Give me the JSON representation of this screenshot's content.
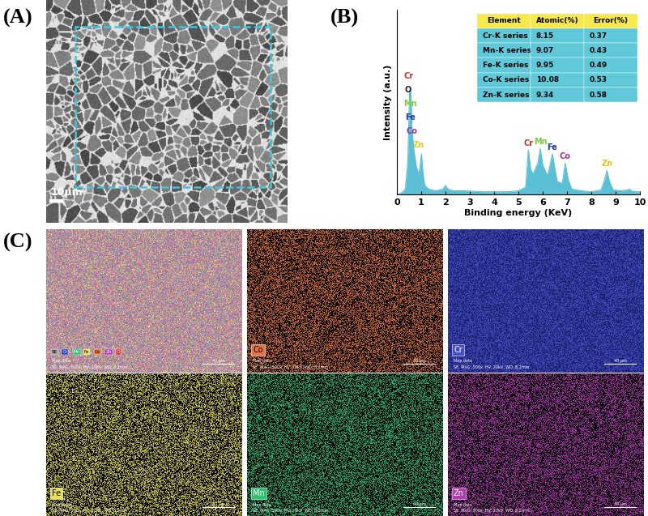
{
  "panels": {
    "A": {
      "label": "(A)",
      "scale_bar": "10μm"
    },
    "B": {
      "label": "(B)"
    },
    "C": {
      "label": "(C)"
    }
  },
  "chart_data": {
    "type": "area",
    "xlabel": "Binding energy (KeV)",
    "ylabel": "Intensity (a.u.)",
    "x": [
      0.0,
      0.2,
      0.35,
      0.45,
      0.52,
      0.57,
      0.62,
      0.7,
      0.8,
      0.9,
      0.95,
      1.01,
      1.07,
      1.15,
      1.3,
      1.6,
      1.9,
      2.0,
      2.1,
      2.3,
      2.8,
      3.5,
      4.0,
      4.5,
      5.0,
      5.3,
      5.41,
      5.5,
      5.6,
      5.8,
      5.9,
      6.0,
      6.2,
      6.4,
      6.5,
      6.6,
      6.8,
      6.93,
      7.05,
      7.2,
      7.6,
      8.0,
      8.4,
      8.55,
      8.64,
      8.75,
      8.9,
      9.2,
      9.5,
      9.57,
      9.65,
      9.8,
      10.0
    ],
    "values": [
      0,
      1,
      3,
      18,
      55,
      58,
      35,
      24,
      15,
      11,
      15,
      22,
      12,
      5,
      3,
      2,
      3,
      5,
      3,
      2,
      2,
      1.5,
      1.5,
      1.5,
      2,
      4,
      24,
      14,
      11,
      17,
      25,
      16,
      10,
      22,
      14,
      7,
      6,
      17,
      8,
      3,
      2,
      1.5,
      2.5,
      8,
      13,
      7,
      2.5,
      2,
      2.5,
      3,
      2,
      1.5,
      1.5
    ],
    "color": "#5bc0d5",
    "xlim": [
      0,
      10
    ],
    "xticks": [
      0,
      1,
      2,
      3,
      4,
      5,
      6,
      7,
      8,
      9,
      10
    ],
    "ylim": [
      0,
      100
    ],
    "tick_labels": "x",
    "peak_labels_low": [
      {
        "label": "Cr",
        "color": "#c0392b"
      },
      {
        "label": "O",
        "color": "#222222"
      },
      {
        "label": "Mn",
        "color": "#7ac943"
      },
      {
        "label": "Fe",
        "color": "#1f3a93"
      },
      {
        "label": "Co",
        "color": "#a0309a"
      },
      {
        "label": "Zn",
        "color": "#e6c619"
      }
    ],
    "peak_labels_k": [
      {
        "label": "Cr",
        "x": 5.41,
        "color": "#c0392b"
      },
      {
        "label": "Mn",
        "x": 5.9,
        "color": "#7ac943"
      },
      {
        "label": "Fe",
        "x": 6.4,
        "color": "#1f3a93"
      },
      {
        "label": "Co",
        "x": 6.93,
        "color": "#a0309a"
      },
      {
        "label": "Zn",
        "x": 8.64,
        "color": "#e6c619"
      }
    ],
    "table": {
      "columns": [
        "Element",
        "Atomic(%)",
        "Error(%)"
      ],
      "rows": [
        [
          "Cr-K series",
          8.15,
          0.37
        ],
        [
          "Mn-K series",
          9.07,
          0.43
        ],
        [
          "Fe-K series",
          9.95,
          0.49
        ],
        [
          "Co-K series",
          10.08,
          0.53
        ],
        [
          "Zn-K series",
          9.34,
          0.58
        ]
      ],
      "header_color": "#f7e94b",
      "body_color": "#5fc9d9"
    }
  },
  "maps": {
    "info_title": "Map data",
    "info": "SE  MAG: 500x  HV: 20kV  WD: 8.2mm",
    "scale_bar": "40 μm",
    "overlay_legend": [
      {
        "label": "SE",
        "color": "#9e9e9e"
      },
      {
        "label": "Cr",
        "color": "#2b3bbf"
      },
      {
        "label": "Mn",
        "color": "#2fbf71"
      },
      {
        "label": "Fe",
        "color": "#e8e050"
      },
      {
        "label": "Co",
        "color": "#e8743b"
      },
      {
        "label": "Zn",
        "color": "#b43ab4"
      },
      {
        "label": "O",
        "color": "#d62728"
      }
    ],
    "items": [
      {
        "label": "Co",
        "color": "#e8743b",
        "background": "#000000"
      },
      {
        "label": "Cr",
        "color": "#4650c8",
        "background": "#1e2170"
      },
      {
        "label": "Fe",
        "color": "#e8e050",
        "background": "#000000"
      },
      {
        "label": "Mn",
        "color": "#2fbf71",
        "background": "#000000"
      },
      {
        "label": "Zn",
        "color": "#b43ab4",
        "background": "#000000"
      }
    ]
  }
}
